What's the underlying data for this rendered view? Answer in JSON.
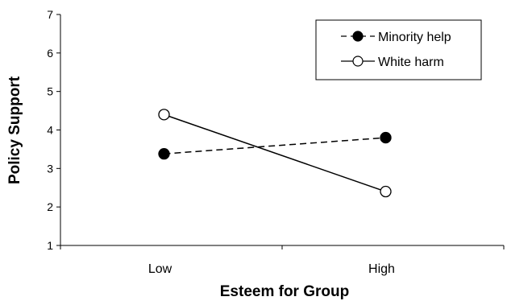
{
  "chart_data": {
    "type": "line",
    "title": "",
    "xlabel": "Esteem for Group",
    "ylabel": "Policy Support",
    "categories": [
      "Low",
      "High"
    ],
    "ylim": [
      1,
      7
    ],
    "yticks": [
      "1",
      "2",
      "3",
      "4",
      "5",
      "6",
      "7"
    ],
    "grid": false,
    "legend_position": "top-right",
    "series": [
      {
        "name": "Minority help",
        "values": [
          3.38,
          3.8
        ],
        "style": "dashed",
        "marker": "filled-circle",
        "color": "#000000"
      },
      {
        "name": "White harm",
        "values": [
          4.4,
          2.4
        ],
        "style": "solid",
        "marker": "open-circle",
        "color": "#000000"
      }
    ]
  }
}
